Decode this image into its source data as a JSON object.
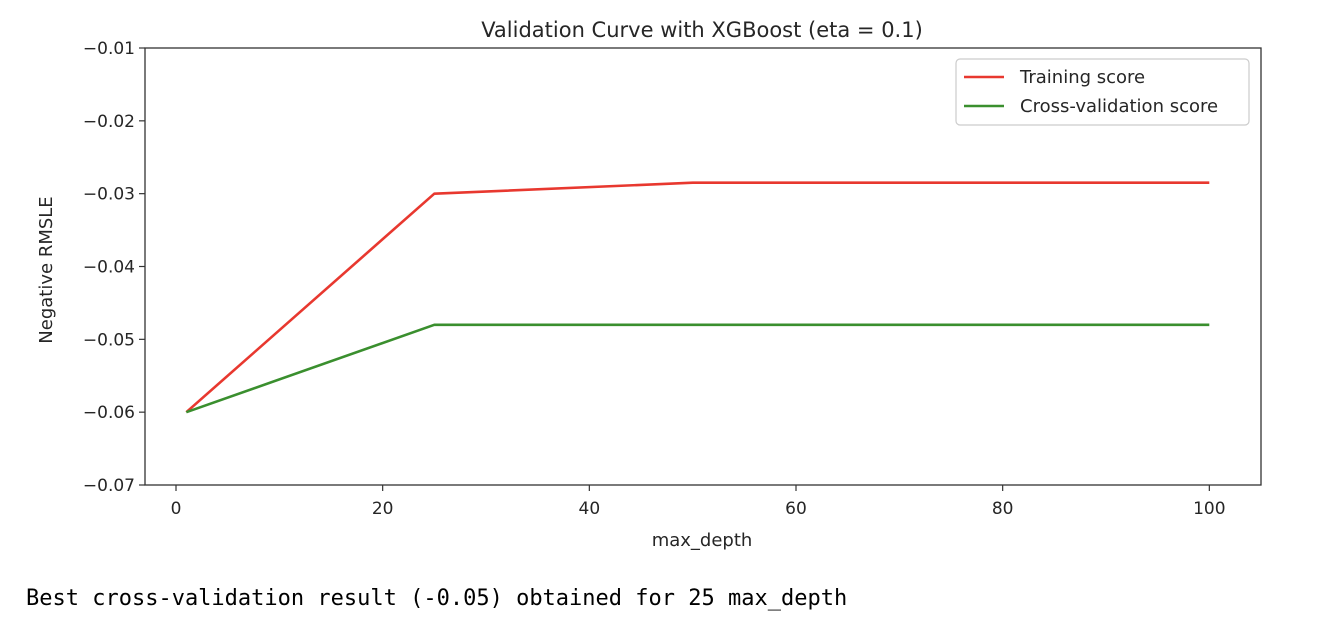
{
  "chart_data": {
    "type": "line",
    "title": "Validation Curve with XGBoost (eta = 0.1)",
    "xlabel": "max_depth",
    "ylabel": "Negative RMSLE",
    "xlim": [
      -3,
      105
    ],
    "ylim": [
      -0.07,
      -0.01
    ],
    "x_ticks": [
      0,
      20,
      40,
      60,
      80,
      100
    ],
    "x_tick_labels": [
      "0",
      "20",
      "40",
      "60",
      "80",
      "100"
    ],
    "y_ticks": [
      -0.07,
      -0.06,
      -0.05,
      -0.04,
      -0.03,
      -0.02,
      -0.01
    ],
    "y_tick_labels": [
      "−0.07",
      "−0.06",
      "−0.05",
      "−0.04",
      "−0.03",
      "−0.02",
      "−0.01"
    ],
    "grid": false,
    "legend_position": "upper right",
    "x": [
      1,
      25,
      50,
      75,
      100
    ],
    "series": [
      {
        "name": "Training score",
        "color": "#e8382f",
        "values": [
          -0.06,
          -0.03,
          -0.0285,
          -0.0285,
          -0.0285
        ]
      },
      {
        "name": "Cross-validation score",
        "color": "#3a8f2e",
        "values": [
          -0.06,
          -0.048,
          -0.048,
          -0.048,
          -0.048
        ]
      }
    ]
  },
  "output": {
    "text": "Best cross-validation result (-0.05) obtained for 25 max_depth"
  }
}
